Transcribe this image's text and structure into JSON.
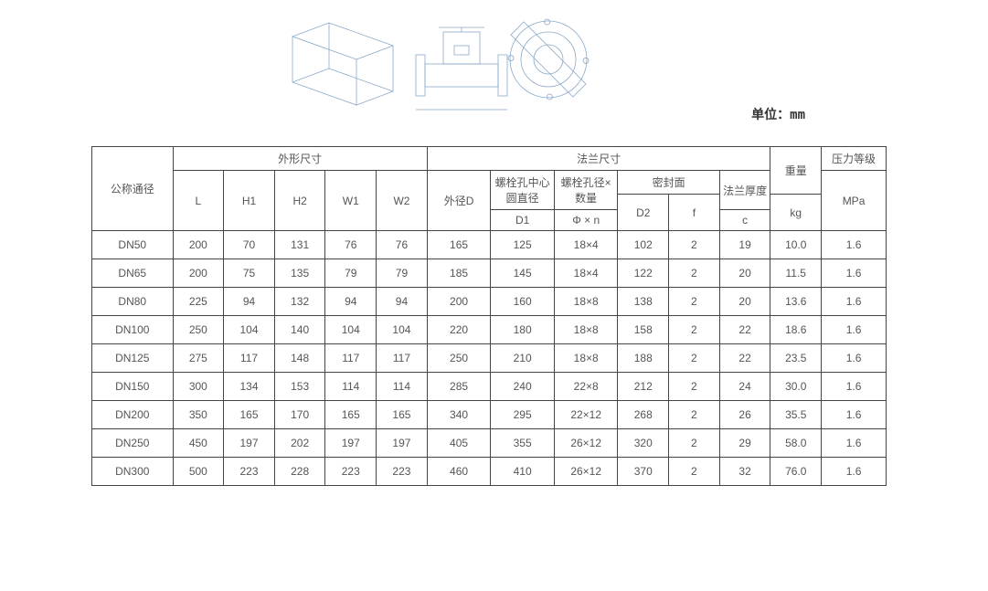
{
  "unit_label": "单位：mm",
  "table": {
    "columns": {
      "nominal_dia": "公称通径",
      "outline_dim": "外形尺寸",
      "flange_dim": "法兰尺寸",
      "weight": "重量",
      "pressure": "压力等级",
      "L": "L",
      "H1": "H1",
      "H2": "H2",
      "W1": "W1",
      "W2": "W2",
      "OD": "外径D",
      "bolt_circle": "螺栓孔中心圆直径",
      "bolt_dia_n": "螺栓孔径×数量",
      "seal_face": "密封面",
      "flange_th": "法兰厚度",
      "D1": "D1",
      "phi_n": "Φ × n",
      "D2": "D2",
      "f": "f",
      "c": "c",
      "kg": "kg",
      "MPa": "MPa"
    },
    "rows": [
      {
        "dn": "DN50",
        "L": "200",
        "H1": "70",
        "H2": "131",
        "W1": "76",
        "W2": "76",
        "OD": "165",
        "D1": "125",
        "phi_n": "18×4",
        "D2": "102",
        "f": "2",
        "c": "19",
        "kg": "10.0",
        "MPa": "1.6"
      },
      {
        "dn": "DN65",
        "L": "200",
        "H1": "75",
        "H2": "135",
        "W1": "79",
        "W2": "79",
        "OD": "185",
        "D1": "145",
        "phi_n": "18×4",
        "D2": "122",
        "f": "2",
        "c": "20",
        "kg": "11.5",
        "MPa": "1.6"
      },
      {
        "dn": "DN80",
        "L": "225",
        "H1": "94",
        "H2": "132",
        "W1": "94",
        "W2": "94",
        "OD": "200",
        "D1": "160",
        "phi_n": "18×8",
        "D2": "138",
        "f": "2",
        "c": "20",
        "kg": "13.6",
        "MPa": "1.6"
      },
      {
        "dn": "DN100",
        "L": "250",
        "H1": "104",
        "H2": "140",
        "W1": "104",
        "W2": "104",
        "OD": "220",
        "D1": "180",
        "phi_n": "18×8",
        "D2": "158",
        "f": "2",
        "c": "22",
        "kg": "18.6",
        "MPa": "1.6"
      },
      {
        "dn": "DN125",
        "L": "275",
        "H1": "117",
        "H2": "148",
        "W1": "117",
        "W2": "117",
        "OD": "250",
        "D1": "210",
        "phi_n": "18×8",
        "D2": "188",
        "f": "2",
        "c": "22",
        "kg": "23.5",
        "MPa": "1.6"
      },
      {
        "dn": "DN150",
        "L": "300",
        "H1": "134",
        "H2": "153",
        "W1": "114",
        "W2": "114",
        "OD": "285",
        "D1": "240",
        "phi_n": "22×8",
        "D2": "212",
        "f": "2",
        "c": "24",
        "kg": "30.0",
        "MPa": "1.6"
      },
      {
        "dn": "DN200",
        "L": "350",
        "H1": "165",
        "H2": "170",
        "W1": "165",
        "W2": "165",
        "OD": "340",
        "D1": "295",
        "phi_n": "22×12",
        "D2": "268",
        "f": "2",
        "c": "26",
        "kg": "35.5",
        "MPa": "1.6"
      },
      {
        "dn": "DN250",
        "L": "450",
        "H1": "197",
        "H2": "202",
        "W1": "197",
        "W2": "197",
        "OD": "405",
        "D1": "355",
        "phi_n": "26×12",
        "D2": "320",
        "f": "2",
        "c": "29",
        "kg": "58.0",
        "MPa": "1.6"
      },
      {
        "dn": "DN300",
        "L": "500",
        "H1": "223",
        "H2": "228",
        "W1": "223",
        "W2": "223",
        "OD": "460",
        "D1": "410",
        "phi_n": "26×12",
        "D2": "370",
        "f": "2",
        "c": "32",
        "kg": "76.0",
        "MPa": "1.6"
      }
    ]
  },
  "style": {
    "border_color": "#444444",
    "text_color": "#555555",
    "font_size_body": 12,
    "font_size_unit": 14,
    "diagram_stroke": "#8aa8c8",
    "background": "#ffffff"
  }
}
